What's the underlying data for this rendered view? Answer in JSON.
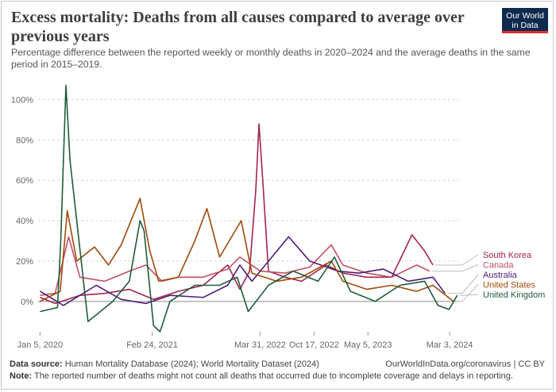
{
  "header": {
    "title": "Excess mortality: Deaths from all causes compared to average over previous years",
    "subtitle": "Percentage difference between the reported weekly or monthly deaths in 2020–2024 and the average deaths in the same period in 2015–2019.",
    "logo_line1": "Our World",
    "logo_line2": "in Data"
  },
  "footer": {
    "source_label": "Data source:",
    "source_text": "Human Mortality Database (2024); World Mortality Dataset (2024)",
    "url_text": "OurWorldInData.org/coronavirus | CC BY",
    "note_label": "Note:",
    "note_text": "The reported number of deaths might not count all deaths that occurred due to incomplete coverage and delays in reporting."
  },
  "chart_data": {
    "type": "line",
    "x_axis": {
      "type": "date",
      "range": [
        "2019-12-29",
        "2024-04-07"
      ]
    },
    "ylim": [
      -15,
      110
    ],
    "yticks": [
      0,
      20,
      40,
      60,
      80,
      100
    ],
    "ytick_labels": [
      "0%",
      "20%",
      "40%",
      "60%",
      "80%",
      "100%"
    ],
    "xticks": [
      "2020-01-05",
      "2021-02-24",
      "2022-03-31",
      "2022-10-17",
      "2023-05-05",
      "2024-03-03"
    ],
    "xtick_labels": [
      "Jan 5, 2020",
      "Feb 24, 2021",
      "Mar 31, 2022",
      "Oct 17, 2022",
      "May 5, 2023",
      "Mar 3, 2024"
    ],
    "grid": "horizontal dotted",
    "legend_position": "right",
    "series": [
      {
        "name": "South Korea",
        "color": "#a2264b",
        "x": [
          "2020-01-05",
          "2020-03-01",
          "2020-06-01",
          "2020-09-01",
          "2020-12-01",
          "2021-03-01",
          "2021-06-01",
          "2021-09-01",
          "2021-12-01",
          "2022-01-15",
          "2022-02-20",
          "2022-03-15",
          "2022-03-27",
          "2022-04-10",
          "2022-05-01",
          "2022-07-01",
          "2022-09-01",
          "2022-12-01",
          "2023-02-01",
          "2023-05-01",
          "2023-08-01",
          "2023-10-15",
          "2023-12-01",
          "2024-01-01"
        ],
        "y": [
          2,
          -1,
          3,
          4,
          6,
          1,
          5,
          8,
          18,
          6,
          15,
          55,
          88,
          60,
          15,
          12,
          10,
          18,
          14,
          12,
          12,
          33,
          25,
          18
        ]
      },
      {
        "name": "Canada",
        "color": "#c15065",
        "x": [
          "2020-01-05",
          "2020-03-01",
          "2020-04-20",
          "2020-06-01",
          "2020-09-01",
          "2020-12-01",
          "2021-02-01",
          "2021-04-01",
          "2021-06-01",
          "2021-09-01",
          "2021-12-01",
          "2022-01-15",
          "2022-04-01",
          "2022-07-01",
          "2022-10-01",
          "2022-12-20",
          "2023-02-01",
          "2023-05-01",
          "2023-08-01",
          "2023-11-01",
          "2023-12-20"
        ],
        "y": [
          3,
          4,
          32,
          12,
          10,
          15,
          18,
          10,
          12,
          12,
          16,
          22,
          15,
          14,
          17,
          28,
          18,
          14,
          12,
          18,
          15
        ]
      },
      {
        "name": "Australia",
        "color": "#4f1c7a",
        "x": [
          "2020-01-05",
          "2020-04-01",
          "2020-08-01",
          "2020-11-01",
          "2021-02-01",
          "2021-05-01",
          "2021-09-01",
          "2021-12-01",
          "2022-01-15",
          "2022-03-01",
          "2022-07-15",
          "2022-10-01",
          "2023-01-15",
          "2023-04-01",
          "2023-07-01",
          "2023-10-01",
          "2024-01-01",
          "2024-02-15"
        ],
        "y": [
          5,
          -2,
          8,
          1,
          -1,
          3,
          2,
          8,
          18,
          10,
          32,
          20,
          15,
          14,
          16,
          10,
          12,
          4
        ]
      },
      {
        "name": "United States",
        "color": "#a04a0b",
        "x": [
          "2020-01-05",
          "2020-03-20",
          "2020-04-15",
          "2020-05-20",
          "2020-07-25",
          "2020-09-15",
          "2020-11-01",
          "2021-01-10",
          "2021-02-15",
          "2021-03-20",
          "2021-06-01",
          "2021-08-01",
          "2021-09-15",
          "2021-11-01",
          "2022-01-20",
          "2022-03-01",
          "2022-06-01",
          "2022-09-01",
          "2022-12-20",
          "2023-02-01",
          "2023-05-01",
          "2023-08-01",
          "2023-11-01",
          "2024-01-01",
          "2024-03-17"
        ],
        "y": [
          0,
          5,
          45,
          20,
          27,
          18,
          28,
          51,
          25,
          10,
          12,
          30,
          46,
          22,
          40,
          14,
          10,
          12,
          20,
          10,
          6,
          8,
          5,
          8,
          0
        ]
      },
      {
        "name": "United Kingdom",
        "color": "#1e5c3a",
        "x": [
          "2020-01-05",
          "2020-03-10",
          "2020-03-22",
          "2020-04-10",
          "2020-04-25",
          "2020-05-20",
          "2020-07-01",
          "2020-10-01",
          "2020-12-01",
          "2021-01-10",
          "2021-01-25",
          "2021-03-01",
          "2021-03-25",
          "2021-05-01",
          "2021-08-01",
          "2021-11-01",
          "2022-01-05",
          "2022-02-15",
          "2022-05-01",
          "2022-08-01",
          "2022-11-01",
          "2023-01-01",
          "2023-03-01",
          "2023-06-01",
          "2023-09-01",
          "2023-12-01",
          "2024-01-20",
          "2024-03-01",
          "2024-03-31"
        ],
        "y": [
          -5,
          -3,
          30,
          107,
          70,
          40,
          -10,
          0,
          10,
          40,
          35,
          -12,
          -15,
          0,
          8,
          8,
          12,
          -5,
          8,
          15,
          10,
          22,
          5,
          0,
          8,
          10,
          -2,
          -4,
          3
        ]
      }
    ]
  }
}
